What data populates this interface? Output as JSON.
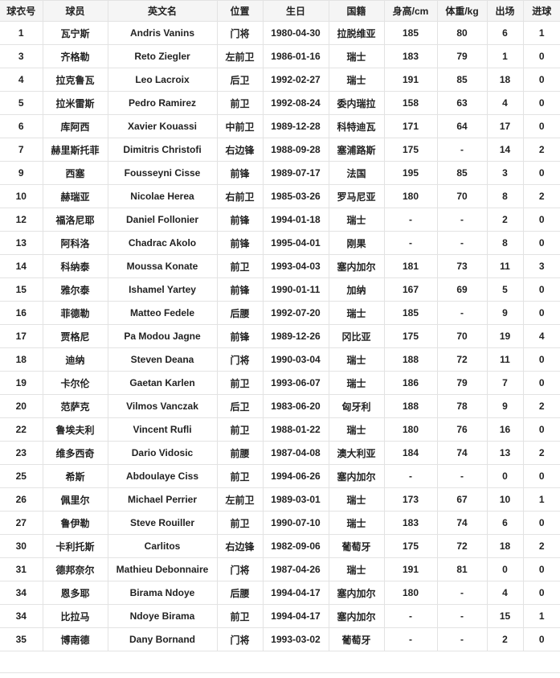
{
  "table": {
    "headers": [
      "球衣号",
      "球员",
      "英文名",
      "位置",
      "生日",
      "国籍",
      "身高/cm",
      "体重/kg",
      "出场",
      "进球"
    ],
    "rows": [
      [
        "1",
        "瓦宁斯",
        "Andris Vanins",
        "门将",
        "1980-04-30",
        "拉脱维亚",
        "185",
        "80",
        "6",
        "1"
      ],
      [
        "3",
        "齐格勒",
        "Reto Ziegler",
        "左前卫",
        "1986-01-16",
        "瑞士",
        "183",
        "79",
        "1",
        "0"
      ],
      [
        "4",
        "拉克鲁瓦",
        "Leo Lacroix",
        "后卫",
        "1992-02-27",
        "瑞士",
        "191",
        "85",
        "18",
        "0"
      ],
      [
        "5",
        "拉米雷斯",
        "Pedro Ramirez",
        "前卫",
        "1992-08-24",
        "委内瑞拉",
        "158",
        "63",
        "4",
        "0"
      ],
      [
        "6",
        "库阿西",
        "Xavier Kouassi",
        "中前卫",
        "1989-12-28",
        "科特迪瓦",
        "171",
        "64",
        "17",
        "0"
      ],
      [
        "7",
        "赫里斯托菲",
        "Dimitris Christofi",
        "右边锋",
        "1988-09-28",
        "塞浦路斯",
        "175",
        "-",
        "14",
        "2"
      ],
      [
        "9",
        "西塞",
        "Fousseyni Cisse",
        "前锋",
        "1989-07-17",
        "法国",
        "195",
        "85",
        "3",
        "0"
      ],
      [
        "10",
        "赫瑞亚",
        "Nicolae Herea",
        "右前卫",
        "1985-03-26",
        "罗马尼亚",
        "180",
        "70",
        "8",
        "2"
      ],
      [
        "12",
        "福洛尼耶",
        "Daniel Follonier",
        "前锋",
        "1994-01-18",
        "瑞士",
        "-",
        "-",
        "2",
        "0"
      ],
      [
        "13",
        "阿科洛",
        "Chadrac Akolo",
        "前锋",
        "1995-04-01",
        "刚果",
        "-",
        "-",
        "8",
        "0"
      ],
      [
        "14",
        "科纳泰",
        "Moussa Konate",
        "前卫",
        "1993-04-03",
        "塞内加尔",
        "181",
        "73",
        "11",
        "3"
      ],
      [
        "15",
        "雅尔泰",
        "Ishamel Yartey",
        "前锋",
        "1990-01-11",
        "加纳",
        "167",
        "69",
        "5",
        "0"
      ],
      [
        "16",
        "菲德勒",
        "Matteo Fedele",
        "后腰",
        "1992-07-20",
        "瑞士",
        "185",
        "-",
        "9",
        "0"
      ],
      [
        "17",
        "贾格尼",
        "Pa Modou Jagne",
        "前锋",
        "1989-12-26",
        "冈比亚",
        "175",
        "70",
        "19",
        "4"
      ],
      [
        "18",
        "迪纳",
        "Steven Deana",
        "门将",
        "1990-03-04",
        "瑞士",
        "188",
        "72",
        "11",
        "0"
      ],
      [
        "19",
        "卡尔伦",
        "Gaetan Karlen",
        "前卫",
        "1993-06-07",
        "瑞士",
        "186",
        "79",
        "7",
        "0"
      ],
      [
        "20",
        "范萨克",
        "Vilmos Vanczak",
        "后卫",
        "1983-06-20",
        "匈牙利",
        "188",
        "78",
        "9",
        "2"
      ],
      [
        "22",
        "鲁埃夫利",
        "Vincent Rufli",
        "前卫",
        "1988-01-22",
        "瑞士",
        "180",
        "76",
        "16",
        "0"
      ],
      [
        "23",
        "维多西奇",
        "Dario Vidosic",
        "前腰",
        "1987-04-08",
        "澳大利亚",
        "184",
        "74",
        "13",
        "2"
      ],
      [
        "25",
        "希斯",
        "Abdoulaye Ciss",
        "前卫",
        "1994-06-26",
        "塞内加尔",
        "-",
        "-",
        "0",
        "0"
      ],
      [
        "26",
        "佩里尔",
        "Michael Perrier",
        "左前卫",
        "1989-03-01",
        "瑞士",
        "173",
        "67",
        "10",
        "1"
      ],
      [
        "27",
        "鲁伊勒",
        "Steve Rouiller",
        "前卫",
        "1990-07-10",
        "瑞士",
        "183",
        "74",
        "6",
        "0"
      ],
      [
        "30",
        "卡利托斯",
        "Carlitos",
        "右边锋",
        "1982-09-06",
        "葡萄牙",
        "175",
        "72",
        "18",
        "2"
      ],
      [
        "31",
        "德邦奈尔",
        "Mathieu Debonnaire",
        "门将",
        "1987-04-26",
        "瑞士",
        "191",
        "81",
        "0",
        "0"
      ],
      [
        "34",
        "恩多耶",
        "Birama Ndoye",
        "后腰",
        "1994-04-17",
        "塞内加尔",
        "180",
        "-",
        "4",
        "0"
      ],
      [
        "34",
        "比拉马",
        "Ndoye Birama",
        "前卫",
        "1994-04-17",
        "塞内加尔",
        "-",
        "-",
        "15",
        "1"
      ],
      [
        "35",
        "博南德",
        "Dany Bornand",
        "门将",
        "1993-03-02",
        "葡萄牙",
        "-",
        "-",
        "2",
        "0"
      ]
    ]
  }
}
